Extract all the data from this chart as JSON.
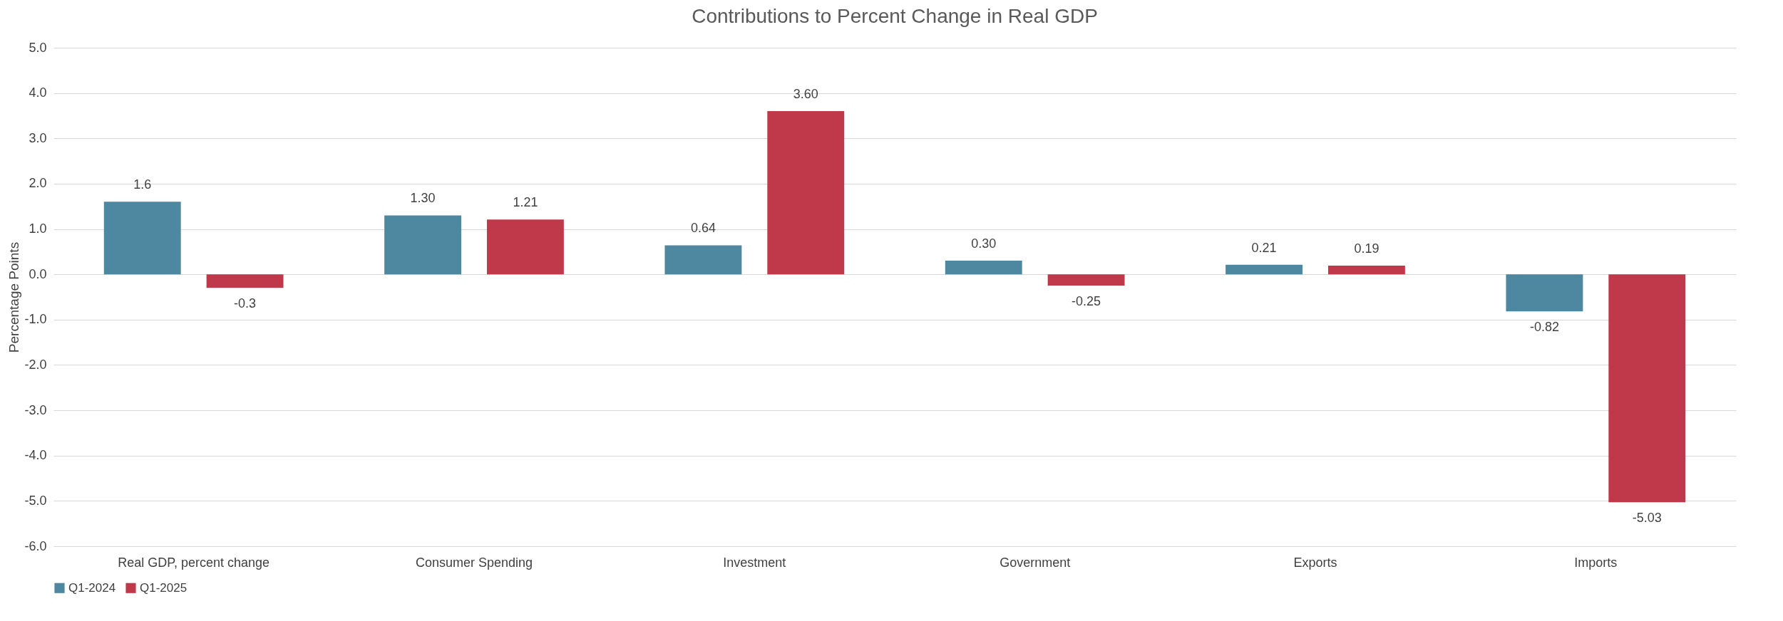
{
  "chart_data": {
    "type": "bar",
    "title": "Contributions to Percent Change in Real GDP",
    "ylabel": "Percentage Points",
    "categories": [
      "Real GDP, percent change",
      "Consumer Spending",
      "Investment",
      "Government",
      "Exports",
      "Imports"
    ],
    "series": [
      {
        "name": "Q1-2024",
        "color": "#4e87a0",
        "values": [
          1.6,
          1.3,
          0.64,
          0.3,
          0.21,
          -0.82
        ],
        "value_labels": [
          "1.6",
          "1.30",
          "0.64",
          "0.30",
          "0.21",
          "-0.82"
        ]
      },
      {
        "name": "Q1-2025",
        "color": "#c0394b",
        "values": [
          -0.3,
          1.21,
          3.6,
          -0.25,
          0.19,
          -5.03
        ],
        "value_labels": [
          "-0.3",
          "1.21",
          "3.60",
          "-0.25",
          "0.19",
          "-5.03"
        ]
      }
    ],
    "ylim": [
      -6,
      5
    ],
    "yticks": [
      {
        "value": -6,
        "label": "-6.0"
      },
      {
        "value": -5,
        "label": "-5.0"
      },
      {
        "value": -4,
        "label": "-4.0"
      },
      {
        "value": -3,
        "label": "-3.0"
      },
      {
        "value": -2,
        "label": "-2.0"
      },
      {
        "value": -1,
        "label": "-1.0"
      },
      {
        "value": 0,
        "label": "0.0"
      },
      {
        "value": 1,
        "label": "1.0"
      },
      {
        "value": 2,
        "label": "2.0"
      },
      {
        "value": 3,
        "label": "3.0"
      },
      {
        "value": 4,
        "label": "4.0"
      },
      {
        "value": 5,
        "label": "5.0"
      }
    ],
    "grid": true,
    "legend": "bottom"
  }
}
